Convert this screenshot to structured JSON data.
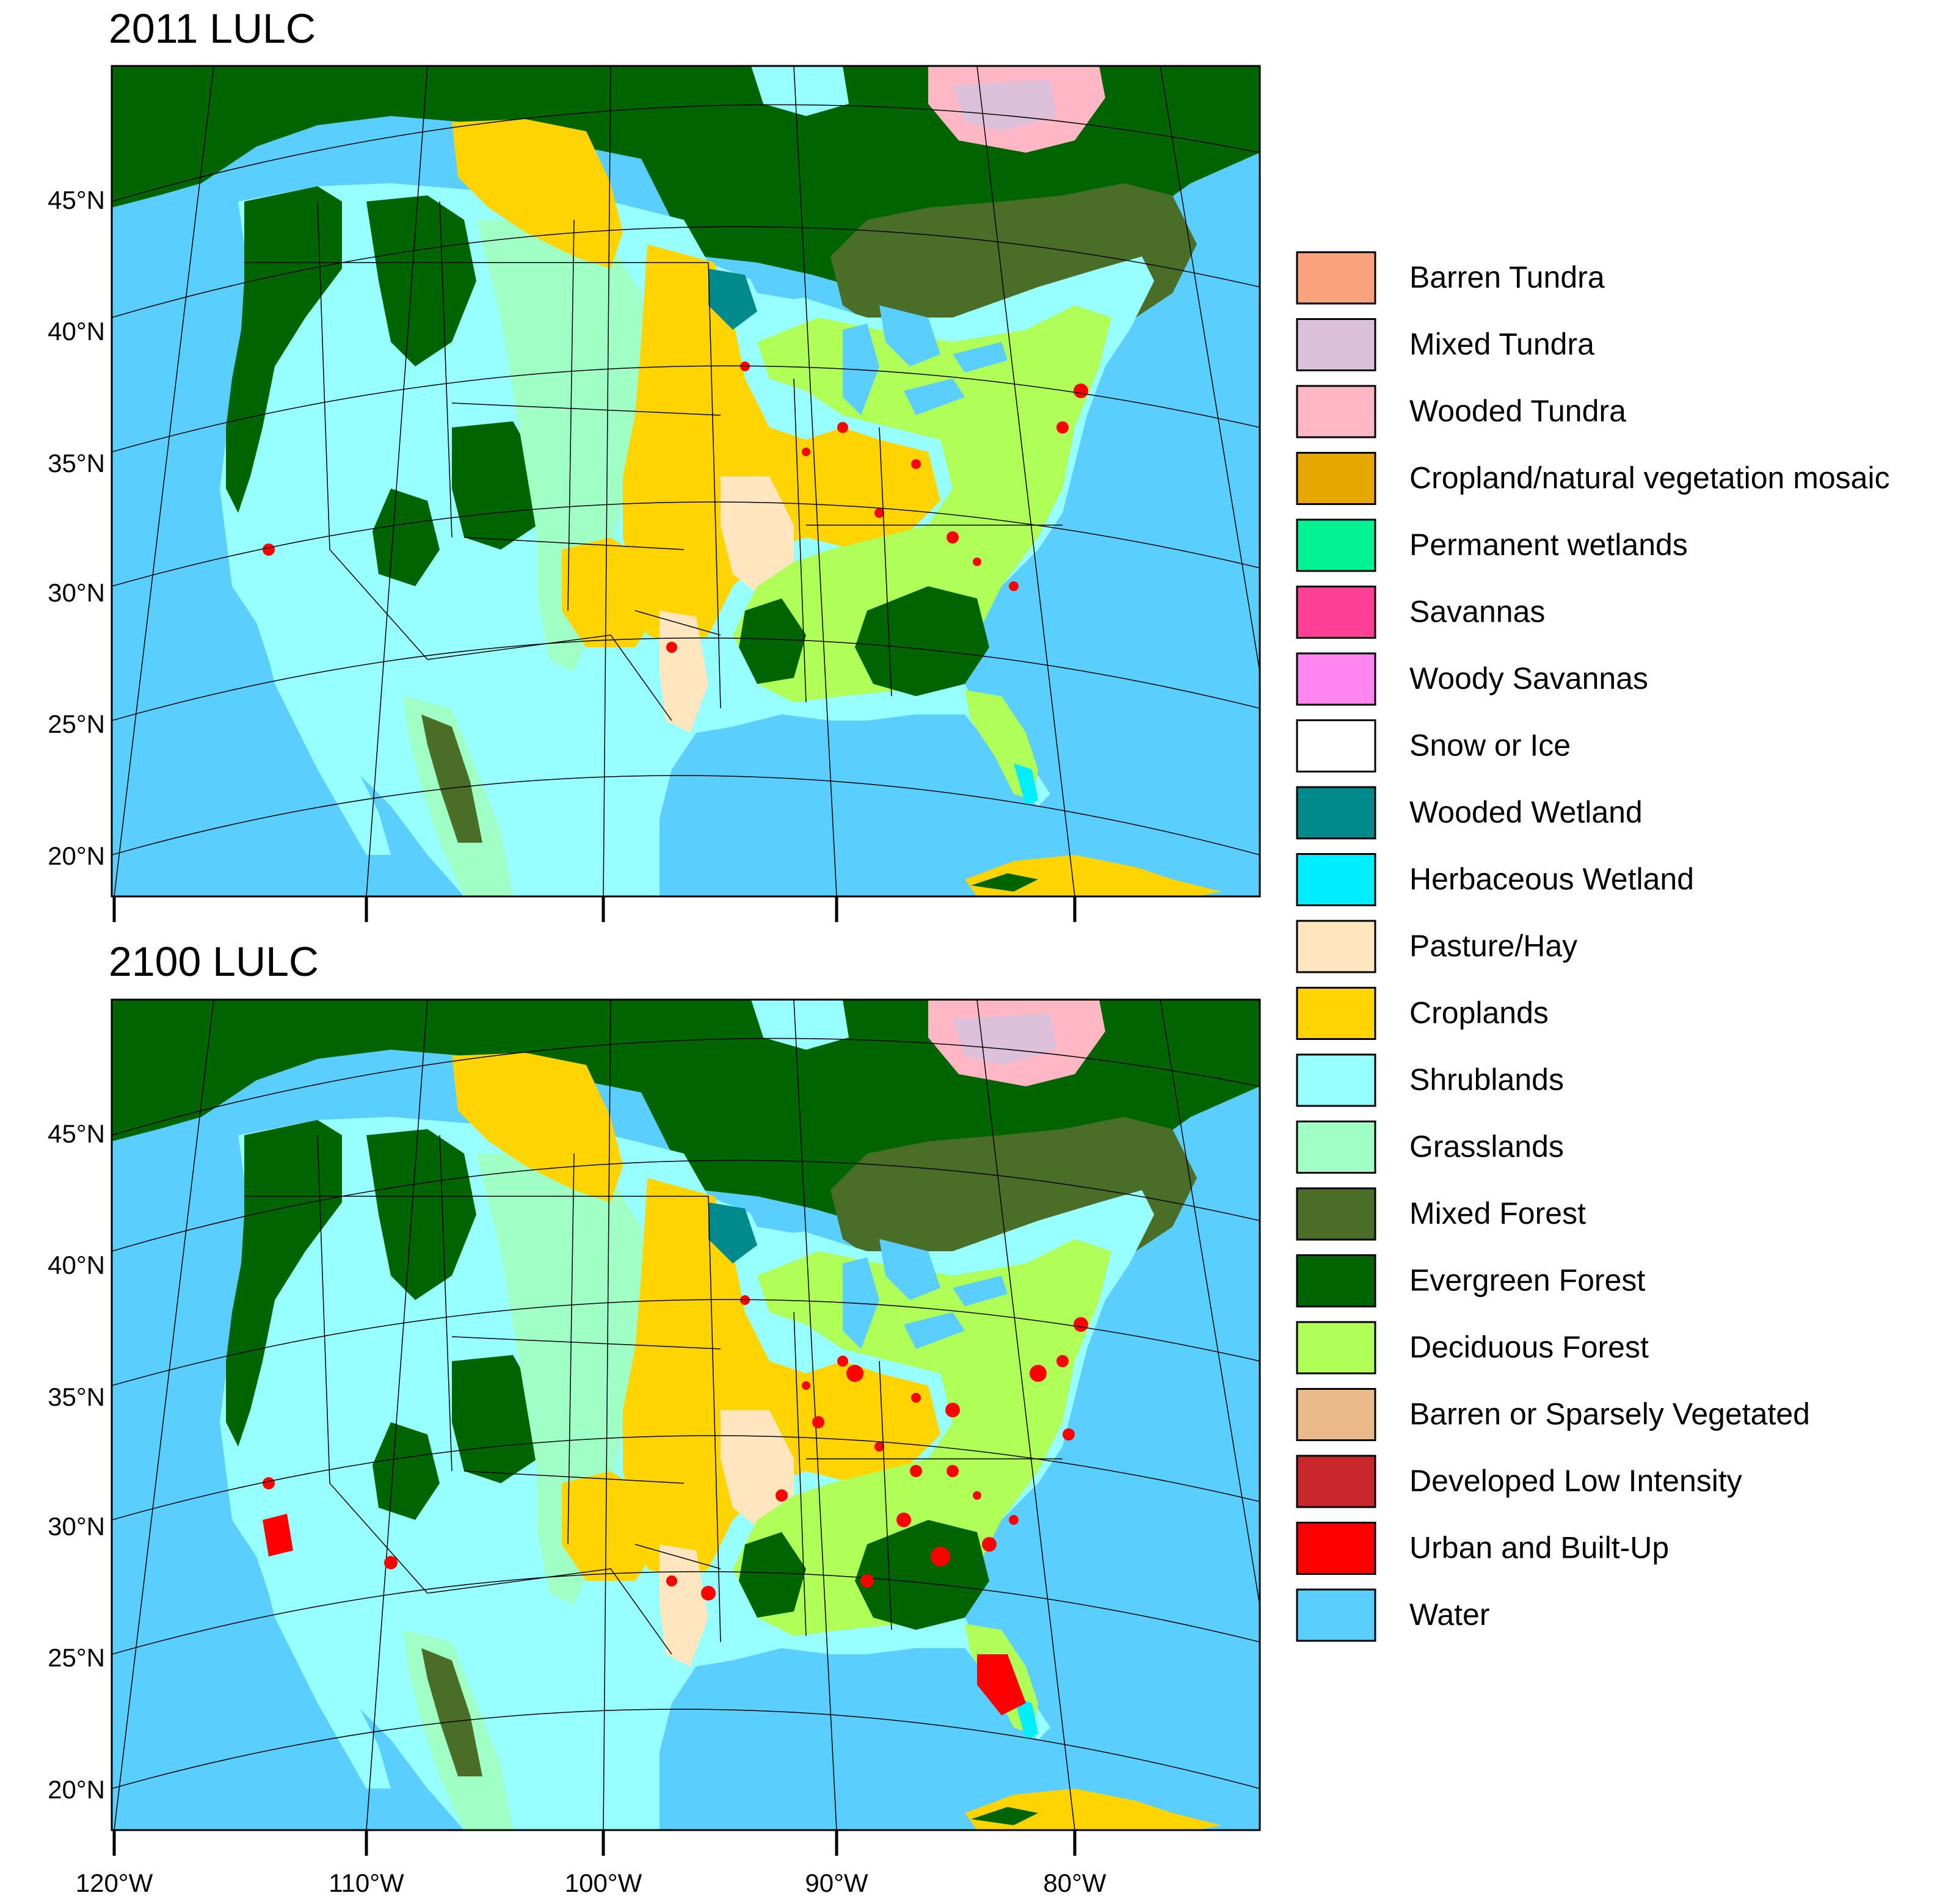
{
  "panels": [
    {
      "title": "2011 LULC"
    },
    {
      "title": "2100 LULC"
    }
  ],
  "lat_labels": [
    "45°N",
    "40°N",
    "35°N",
    "30°N",
    "25°N",
    "20°N"
  ],
  "lon_labels": [
    "120°W",
    "110°W",
    "100°W",
    "90°W",
    "80°W"
  ],
  "legend": [
    {
      "label": "Barren Tundra",
      "color": "#f9a27c"
    },
    {
      "label": "Mixed Tundra",
      "color": "#ddc0da"
    },
    {
      "label": "Wooded Tundra",
      "color": "#ffb6c5"
    },
    {
      "label": "Cropland/natural vegetation mosaic",
      "color": "#e6a700"
    },
    {
      "label": "Permanent wetlands",
      "color": "#00f293"
    },
    {
      "label": "Savannas",
      "color": "#ff3e96"
    },
    {
      "label": "Woody Savannas",
      "color": "#ff86f0"
    },
    {
      "label": "Snow or Ice",
      "color": "#ffffff"
    },
    {
      "label": "Wooded Wetland",
      "color": "#008a8c"
    },
    {
      "label": "Herbaceous Wetland",
      "color": "#00eeff"
    },
    {
      "label": "Pasture/Hay",
      "color": "#ffe6be"
    },
    {
      "label": "Croplands",
      "color": "#ffd400"
    },
    {
      "label": "Shrublands",
      "color": "#97ffff"
    },
    {
      "label": "Grasslands",
      "color": "#a0ffc5"
    },
    {
      "label": "Mixed Forest",
      "color": "#4a6e28"
    },
    {
      "label": "Evergreen Forest",
      "color": "#006400"
    },
    {
      "label": "Deciduous Forest",
      "color": "#b0ff58"
    },
    {
      "label": "Barren or Sparsely Vegetated",
      "color": "#e9b98a"
    },
    {
      "label": "Developed Low Intensity",
      "color": "#c9272b"
    },
    {
      "label": "Urban and Built-Up",
      "color": "#ff0000"
    },
    {
      "label": "Water",
      "color": "#59ceff"
    }
  ]
}
